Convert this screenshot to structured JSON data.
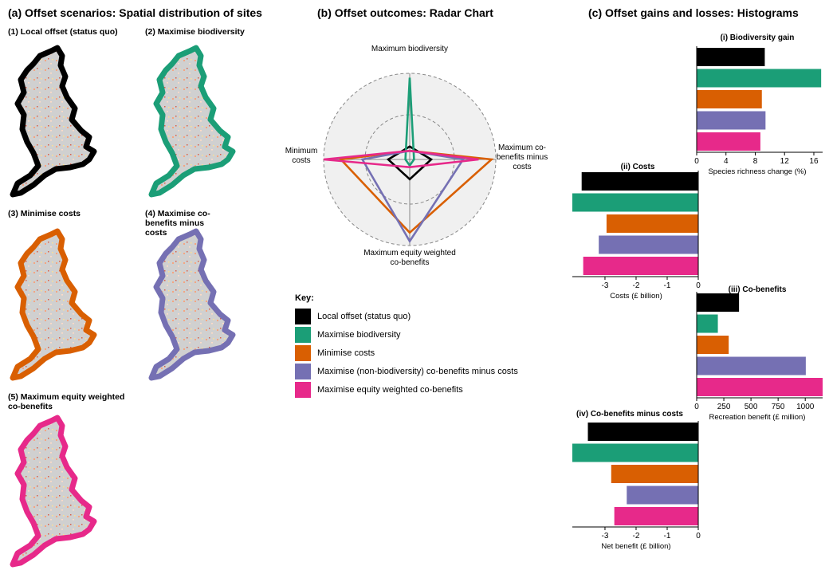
{
  "panel_a": {
    "title": "(a) Offset scenarios: Spatial distribution of sites",
    "maps": [
      {
        "label": "(1)   Local offset (status quo)",
        "color": "#000000"
      },
      {
        "label": "(2) Maximise biodiversity",
        "color": "#1b9e77"
      },
      {
        "label": "(3) Minimise costs",
        "color": "#d95f02"
      },
      {
        "label": "(4) Maximise co-benefits minus costs",
        "color": "#7570b3"
      },
      {
        "label": "(5) Maximum equity weighted co-benefits",
        "color": "#e7298a"
      }
    ]
  },
  "panel_b": {
    "title": "(b) Offset outcomes: Radar Chart",
    "axes": {
      "top": "Maximum biodiversity",
      "right": "Maximum co-benefits minus costs",
      "bottom": "Maximum equity weighted co-benefits",
      "left": "Minimum costs"
    }
  },
  "key": {
    "title": "Key:",
    "items": [
      {
        "label": "Local offset (status quo)",
        "color": "#000000"
      },
      {
        "label": "Maximise biodiversity",
        "color": "#1b9e77"
      },
      {
        "label": "Minimise costs",
        "color": "#d95f02"
      },
      {
        "label": "Maximise (non-biodiversity) co-benefits minus costs",
        "color": "#7570b3"
      },
      {
        "label": "Maximise equity weighted co-benefits",
        "color": "#e7298a"
      }
    ]
  },
  "panel_c": {
    "title": "(c) Offset gains and losses:  Histograms"
  },
  "chart_data": [
    {
      "type": "radar",
      "title": "(b) Offset outcomes: Radar Chart",
      "axes": [
        "Maximum biodiversity",
        "Maximum co-benefits minus costs",
        "Maximum equity weighted co-benefits",
        "Minimum costs"
      ],
      "range": [
        0,
        1
      ],
      "series": [
        {
          "name": "Local offset (status quo)",
          "color": "#000000",
          "values": [
            0.15,
            0.25,
            0.23,
            0.25
          ]
        },
        {
          "name": "Maximise biodiversity",
          "color": "#1b9e77",
          "values": [
            0.95,
            0.05,
            0.07,
            0.05
          ]
        },
        {
          "name": "Minimise costs",
          "color": "#d95f02",
          "values": [
            0.1,
            0.95,
            0.85,
            0.8
          ]
        },
        {
          "name": "Maximise (non-biodiversity) co-benefits minus costs",
          "color": "#7570b3",
          "values": [
            0.1,
            0.62,
            0.95,
            0.55
          ]
        },
        {
          "name": "Maximise equity weighted co-benefits",
          "color": "#e7298a",
          "values": [
            0.1,
            0.8,
            0.09,
            1.0
          ]
        }
      ]
    },
    {
      "type": "bar",
      "title": "(i) Biodiversity gain",
      "xlabel": "Species richness change (%)",
      "ticks": [
        0,
        4,
        8,
        12,
        16
      ],
      "xlim": [
        0,
        17.2
      ],
      "categories": [
        "Local offset (status quo)",
        "Maximise biodiversity",
        "Minimise costs",
        "Maximise (non-biodiversity) co-benefits minus costs",
        "Maximise equity weighted co-benefits"
      ],
      "colors": [
        "#000000",
        "#1b9e77",
        "#d95f02",
        "#7570b3",
        "#e7298a"
      ],
      "values": [
        9.3,
        17.0,
        8.9,
        9.4,
        8.7
      ]
    },
    {
      "type": "bar",
      "title": "(ii) Costs",
      "xlabel": "Costs (£ billion)",
      "ticks": [
        -3,
        -2,
        -1,
        0
      ],
      "xlim": [
        -4.05,
        0
      ],
      "categories": [
        "Local offset (status quo)",
        "Maximise biodiversity",
        "Minimise costs",
        "Maximise (non-biodiversity) co-benefits minus costs",
        "Maximise equity weighted co-benefits"
      ],
      "colors": [
        "#000000",
        "#1b9e77",
        "#d95f02",
        "#7570b3",
        "#e7298a"
      ],
      "values": [
        -3.75,
        -4.05,
        -2.95,
        -3.2,
        -3.7
      ]
    },
    {
      "type": "bar",
      "title": "(iii) Co-benefits",
      "xlabel": "Recreation benefit (£ million)",
      "ticks": [
        0,
        250,
        500,
        750,
        1000
      ],
      "xlim": [
        0,
        1160
      ],
      "categories": [
        "Local offset (status quo)",
        "Maximise biodiversity",
        "Minimise costs",
        "Maximise (non-biodiversity) co-benefits minus costs",
        "Maximise equity weighted co-benefits"
      ],
      "colors": [
        "#000000",
        "#1b9e77",
        "#d95f02",
        "#7570b3",
        "#e7298a"
      ],
      "values": [
        390,
        195,
        295,
        1005,
        1160
      ]
    },
    {
      "type": "bar",
      "title": "(iv) Co-benefits minus costs",
      "xlabel": "Net benefit (£ billion)",
      "ticks": [
        -3,
        -2,
        -1,
        0
      ],
      "xlim": [
        -4.05,
        0
      ],
      "categories": [
        "Local offset (status quo)",
        "Maximise biodiversity",
        "Minimise costs",
        "Maximise (non-biodiversity) co-benefits minus costs",
        "Maximise equity weighted co-benefits"
      ],
      "colors": [
        "#000000",
        "#1b9e77",
        "#d95f02",
        "#7570b3",
        "#e7298a"
      ],
      "values": [
        -3.55,
        -4.05,
        -2.8,
        -2.3,
        -2.7
      ]
    }
  ]
}
